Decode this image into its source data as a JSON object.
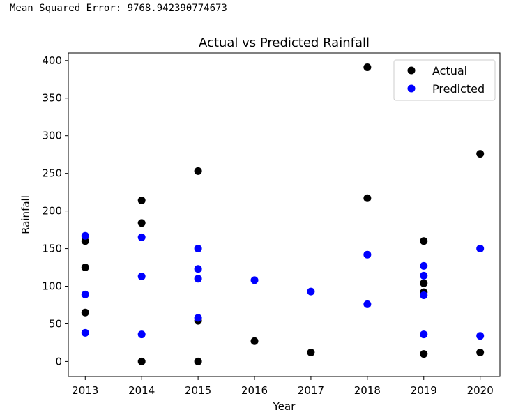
{
  "output_text": "Mean Squared Error: 9768.942390774673",
  "chart_data": {
    "type": "scatter",
    "title": "Actual vs Predicted Rainfall",
    "xlabel": "Year",
    "ylabel": "Rainfall",
    "xlim": [
      2012.7,
      2020.35
    ],
    "ylim": [
      -20,
      410
    ],
    "xticks": [
      2013,
      2014,
      2015,
      2016,
      2017,
      2018,
      2019,
      2020
    ],
    "yticks": [
      0,
      50,
      100,
      150,
      200,
      250,
      300,
      350,
      400
    ],
    "legend_position": "top-right",
    "grid": false,
    "series": [
      {
        "name": "Actual",
        "color": "#000000",
        "points": [
          [
            2013,
            160
          ],
          [
            2013,
            125
          ],
          [
            2013,
            65
          ],
          [
            2014,
            214
          ],
          [
            2014,
            184
          ],
          [
            2014,
            0
          ],
          [
            2015,
            253
          ],
          [
            2015,
            54
          ],
          [
            2015,
            0
          ],
          [
            2016,
            27
          ],
          [
            2017,
            12
          ],
          [
            2018,
            391
          ],
          [
            2018,
            217
          ],
          [
            2019,
            160
          ],
          [
            2019,
            104
          ],
          [
            2019,
            92
          ],
          [
            2019,
            10
          ],
          [
            2020,
            276
          ],
          [
            2020,
            12
          ]
        ]
      },
      {
        "name": "Predicted",
        "color": "#0000ff",
        "points": [
          [
            2013,
            167
          ],
          [
            2013,
            89
          ],
          [
            2013,
            38
          ],
          [
            2014,
            165
          ],
          [
            2014,
            113
          ],
          [
            2014,
            36
          ],
          [
            2015,
            150
          ],
          [
            2015,
            123
          ],
          [
            2015,
            110
          ],
          [
            2015,
            58
          ],
          [
            2016,
            108
          ],
          [
            2017,
            93
          ],
          [
            2018,
            142
          ],
          [
            2018,
            76
          ],
          [
            2019,
            127
          ],
          [
            2019,
            114
          ],
          [
            2019,
            88
          ],
          [
            2019,
            36
          ],
          [
            2020,
            150
          ],
          [
            2020,
            34
          ]
        ]
      }
    ]
  }
}
